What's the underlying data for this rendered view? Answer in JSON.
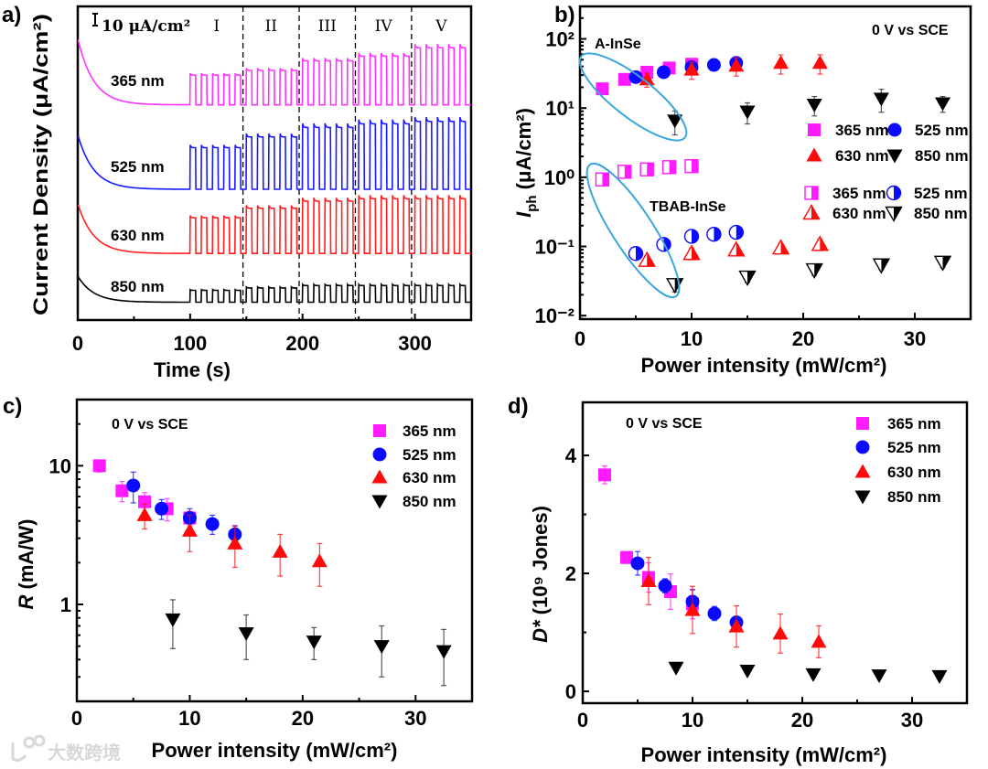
{
  "watermark": "大数跨境",
  "chart_data": [
    {
      "panel": "a)",
      "type": "line",
      "xlabel": "Time (s)",
      "ylabel": "Current Density (μA/cm²)",
      "xlim": [
        0,
        350
      ],
      "xticks": [
        "0",
        "100",
        "200",
        "300"
      ],
      "xtick_values": [
        0,
        100,
        200,
        300
      ],
      "scale_bar_label": "10 μA/cm²",
      "scale_bar_value": 10,
      "segment_labels": [
        "I",
        "II",
        "III",
        "IV",
        "V"
      ],
      "segment_boundaries": [
        147,
        197,
        247,
        297
      ],
      "light_on_start": 100,
      "pulse_period": 10,
      "series": [
        {
          "name": "365 nm",
          "color": "#ff33ff",
          "offset": 181,
          "dark_excess": 56,
          "amplitudes": [
            25,
            29,
            37,
            41,
            48
          ]
        },
        {
          "name": "525 nm",
          "color": "#1a1aff",
          "offset": 110,
          "dark_excess": 46,
          "amplitudes": [
            35,
            44,
            52,
            55,
            57
          ]
        },
        {
          "name": "630 nm",
          "color": "#ff2020",
          "offset": 56,
          "dark_excess": 42,
          "amplitudes": [
            30,
            38,
            44,
            46,
            46
          ]
        },
        {
          "name": "850 nm",
          "color": "#000000",
          "offset": 15,
          "dark_excess": 22,
          "amplitudes": [
            10,
            12,
            14,
            14,
            14
          ]
        }
      ]
    },
    {
      "panel": "b)",
      "type": "scatter",
      "xlabel": "Power intensity (mW/cm²)",
      "ylabel_symbol": "I",
      "ylabel_sub": "ph",
      "ylabel_unit": " (μA/cm²)",
      "yscale": "log",
      "xlim": [
        0,
        35
      ],
      "ylim": [
        0.0089,
        295
      ],
      "xticks": [
        "0",
        "10",
        "20",
        "30"
      ],
      "xtick_values": [
        0,
        10,
        20,
        30
      ],
      "yticks": [
        "10⁻²",
        "10⁻¹",
        "10⁰",
        "10¹",
        "10²"
      ],
      "ytick_values": [
        0.01,
        0.1,
        1,
        10,
        100
      ],
      "annotation": "0 V vs SCE",
      "group_labels": [
        "A-InSe",
        "TBAB-InSe"
      ],
      "series": [
        {
          "name": "365 nm",
          "group": "A-InSe",
          "marker": "square",
          "fill": "full",
          "color": "#ff1aff",
          "x": [
            2,
            4,
            6,
            8,
            10
          ],
          "y": [
            19,
            26,
            33,
            38,
            43
          ],
          "err": [
            0,
            0,
            0,
            0,
            0
          ]
        },
        {
          "name": "525 nm",
          "group": "A-InSe",
          "marker": "circle",
          "fill": "full",
          "color": "#0a0aff",
          "x": [
            5,
            7.5,
            10,
            12,
            14
          ],
          "y": [
            28,
            33,
            39,
            42,
            45
          ],
          "err": [
            0,
            0,
            0,
            0,
            0
          ]
        },
        {
          "name": "630 nm",
          "group": "A-InSe",
          "marker": "triangle-up",
          "fill": "full",
          "color": "#ff0a0a",
          "x": [
            6,
            10,
            14,
            18,
            21.5
          ],
          "y": [
            26,
            36,
            41,
            45,
            45
          ],
          "err": [
            6,
            10,
            12,
            14,
            14
          ]
        },
        {
          "name": "850 nm",
          "group": "A-InSe",
          "marker": "triangle-down",
          "fill": "full",
          "color": "#000000",
          "x": [
            8.5,
            15,
            21,
            27,
            32.5
          ],
          "y": [
            6.6,
            8.9,
            11.2,
            13.7,
            11.7
          ],
          "err": [
            2.5,
            3,
            3.5,
            5,
            3
          ]
        },
        {
          "name": "365 nm",
          "group": "TBAB-InSe",
          "marker": "square",
          "fill": "half",
          "color": "#ff1aff",
          "x": [
            2,
            4,
            6,
            8,
            10
          ],
          "y": [
            0.93,
            1.2,
            1.3,
            1.4,
            1.45
          ],
          "err": [
            0,
            0,
            0,
            0,
            0
          ]
        },
        {
          "name": "525 nm",
          "group": "TBAB-InSe",
          "marker": "circle",
          "fill": "half",
          "color": "#0a0aff",
          "x": [
            5,
            7.5,
            10,
            12,
            14
          ],
          "y": [
            0.079,
            0.107,
            0.14,
            0.15,
            0.16
          ],
          "err": [
            0,
            0,
            0,
            0,
            0
          ]
        },
        {
          "name": "630 nm",
          "group": "TBAB-InSe",
          "marker": "triangle-up",
          "fill": "half",
          "color": "#ff0a0a",
          "x": [
            6,
            10,
            14,
            18,
            21.5
          ],
          "y": [
            0.063,
            0.079,
            0.089,
            0.095,
            0.107
          ],
          "err": [
            0.01,
            0.015,
            0.015,
            0.015,
            0.02
          ]
        },
        {
          "name": "850 nm",
          "group": "TBAB-InSe",
          "marker": "triangle-down",
          "fill": "half",
          "color": "#000000",
          "x": [
            8.5,
            15,
            21,
            27,
            32.5
          ],
          "y": [
            0.028,
            0.036,
            0.046,
            0.054,
            0.059
          ],
          "err": [
            0.006,
            0.006,
            0.008,
            0.008,
            0.01
          ]
        }
      ]
    },
    {
      "panel": "c)",
      "type": "scatter",
      "xlabel": "Power intensity (mW/cm²)",
      "ylabel_symbol": "R",
      "ylabel_unit": " (mA/W)",
      "yscale": "log",
      "xlim": [
        0,
        35
      ],
      "ylim": [
        0.2,
        30
      ],
      "xticks": [
        "0",
        "10",
        "20",
        "30"
      ],
      "xtick_values": [
        0,
        10,
        20,
        30
      ],
      "yticks": [
        "1",
        "10"
      ],
      "ytick_values": [
        1,
        10
      ],
      "annotation": "0 V vs SCE",
      "series": [
        {
          "name": "365 nm",
          "marker": "square",
          "fill": "full",
          "color": "#ff1aff",
          "x": [
            2,
            4,
            6,
            8,
            10
          ],
          "y": [
            10,
            6.6,
            5.5,
            4.9,
            4.2
          ],
          "err": [
            1,
            1.1,
            0.9,
            0.9,
            0.5
          ]
        },
        {
          "name": "525 nm",
          "marker": "circle",
          "fill": "full",
          "color": "#0a0aff",
          "x": [
            5,
            7.5,
            10,
            12,
            14
          ],
          "y": [
            7.2,
            4.9,
            4.2,
            3.8,
            3.2
          ],
          "err": [
            1.8,
            0.8,
            0.7,
            0.6,
            0.5
          ]
        },
        {
          "name": "630 nm",
          "marker": "triangle-up",
          "fill": "full",
          "color": "#ff0a0a",
          "x": [
            6,
            10,
            14,
            18,
            21.5
          ],
          "y": [
            4.4,
            3.4,
            2.75,
            2.4,
            2.05
          ],
          "err": [
            0.9,
            1.0,
            0.9,
            0.8,
            0.7
          ]
        },
        {
          "name": "850 nm",
          "marker": "triangle-down",
          "fill": "full",
          "color": "#000000",
          "x": [
            8.5,
            15,
            21,
            27,
            32.5
          ],
          "y": [
            0.78,
            0.62,
            0.54,
            0.5,
            0.46
          ],
          "err": [
            0.3,
            0.22,
            0.14,
            0.2,
            0.2
          ]
        }
      ]
    },
    {
      "panel": "d)",
      "type": "scatter",
      "xlabel": "Power intensity (mW/cm²)",
      "ylabel_symbol": "D*",
      "ylabel_unit": " (10⁹ Jones)",
      "yscale": "linear",
      "xlim": [
        0,
        35
      ],
      "ylim": [
        -0.2,
        4.9
      ],
      "xticks": [
        "0",
        "10",
        "20",
        "30"
      ],
      "xtick_values": [
        0,
        10,
        20,
        30
      ],
      "yticks": [
        "0",
        "2",
        "4"
      ],
      "ytick_values": [
        0,
        2,
        4
      ],
      "annotation": "0 V vs SCE",
      "series": [
        {
          "name": "365 nm",
          "marker": "square",
          "fill": "full",
          "color": "#ff1aff",
          "x": [
            2,
            4,
            6,
            8,
            10
          ],
          "y": [
            3.67,
            2.27,
            1.93,
            1.69,
            1.48
          ],
          "err": [
            0.15,
            0.1,
            0.25,
            0.3,
            0.25
          ]
        },
        {
          "name": "525 nm",
          "marker": "circle",
          "fill": "full",
          "color": "#0a0aff",
          "x": [
            5,
            7.5,
            10,
            12,
            14
          ],
          "y": [
            2.17,
            1.79,
            1.52,
            1.32,
            1.17
          ],
          "err": [
            0.2,
            0.12,
            0.2,
            0.12,
            0.05
          ]
        },
        {
          "name": "630 nm",
          "marker": "triangle-up",
          "fill": "full",
          "color": "#ff0a0a",
          "x": [
            6,
            10,
            14,
            18,
            21.5
          ],
          "y": [
            1.87,
            1.38,
            1.1,
            0.98,
            0.84
          ],
          "err": [
            0.4,
            0.4,
            0.35,
            0.33,
            0.27
          ]
        },
        {
          "name": "850 nm",
          "marker": "triangle-down",
          "fill": "full",
          "color": "#000000",
          "x": [
            8.5,
            15,
            21,
            27,
            32.5
          ],
          "y": [
            0.4,
            0.35,
            0.29,
            0.27,
            0.26
          ],
          "err": [
            0.05,
            0.05,
            0.05,
            0.05,
            0.05
          ]
        }
      ]
    }
  ]
}
